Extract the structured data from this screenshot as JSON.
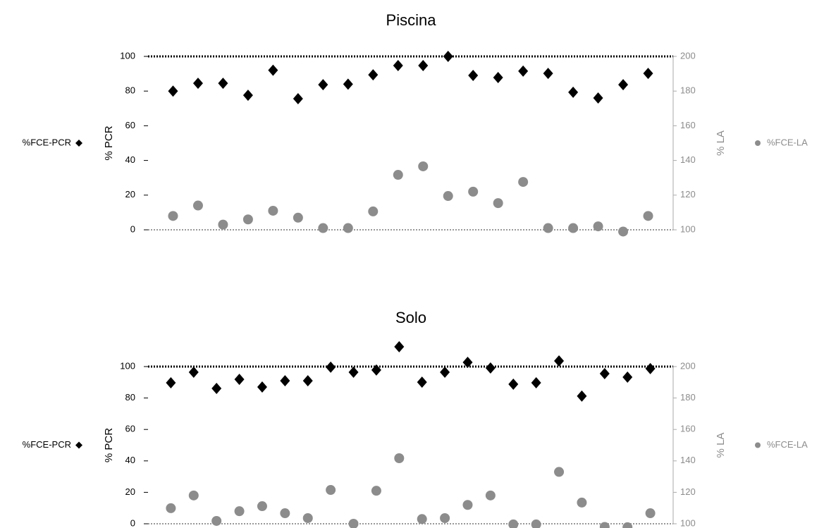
{
  "chart_data": [
    {
      "type": "scatter",
      "title": "Piscina",
      "ylabel": "% PCR",
      "y2label": "% LA",
      "categories": [
        null,
        null,
        null,
        null,
        null,
        null,
        null,
        null,
        null,
        null,
        null,
        null,
        null,
        null,
        null,
        null,
        null,
        null,
        null,
        null
      ],
      "series": [
        {
          "name": "%FCE-PCR",
          "color": "#000000",
          "marker": "diamond",
          "values": [
            80,
            84.5,
            84.5,
            77.6,
            92,
            75.6,
            83.7,
            84,
            89.4,
            94.7,
            94.7,
            100,
            89,
            87.8,
            91.5,
            90.2,
            79.3,
            76,
            83.7,
            90.2
          ]
        },
        {
          "name": "%FCE-LA",
          "color": "#8c8c8c",
          "marker": "circle",
          "axis": "y2",
          "values": [
            108,
            114,
            103,
            106,
            111,
            107,
            101,
            101,
            110.6,
            131.7,
            136.6,
            119.5,
            122,
            115.4,
            127.6,
            101,
            101,
            102,
            99,
            108
          ]
        }
      ],
      "ylim": [
        0,
        100
      ],
      "yticks": [
        0,
        20,
        40,
        60,
        80,
        100
      ],
      "y2lim": [
        100,
        200
      ],
      "y2ticks": [
        100,
        120,
        140,
        160,
        180,
        200
      ]
    },
    {
      "type": "scatter",
      "title": "Solo",
      "ylabel": "% PCR",
      "y2label": "% LA",
      "categories": [
        null,
        null,
        null,
        null,
        null,
        null,
        null,
        null,
        null,
        null,
        null,
        null,
        null,
        null,
        null,
        null,
        null,
        null,
        null,
        null,
        null,
        null
      ],
      "series": [
        {
          "name": "%FCE-PCR",
          "color": "#000000",
          "marker": "diamond",
          "values": [
            89.7,
            96.4,
            86.1,
            91.9,
            87,
            91,
            91,
            99.6,
            96.4,
            97.8,
            112.6,
            90.1,
            96.4,
            102.7,
            99.1,
            88.8,
            89.7,
            103.6,
            81.2,
            95.5,
            93.3,
            98.7
          ]
        },
        {
          "name": "%FCE-LA",
          "color": "#8c8c8c",
          "marker": "circle",
          "axis": "y2",
          "values": [
            109.9,
            118,
            101.8,
            108,
            111.2,
            106.7,
            103.6,
            121.5,
            100,
            121,
            141.7,
            103,
            103.6,
            112,
            118,
            99.6,
            99.6,
            133,
            113.5,
            98,
            97.8,
            106.7
          ]
        }
      ],
      "ylim": [
        0,
        100
      ],
      "yticks": [
        0,
        20,
        40,
        60,
        80,
        100
      ],
      "y2lim": [
        100,
        200
      ],
      "y2ticks": [
        100,
        120,
        140,
        160,
        180,
        200
      ]
    }
  ]
}
